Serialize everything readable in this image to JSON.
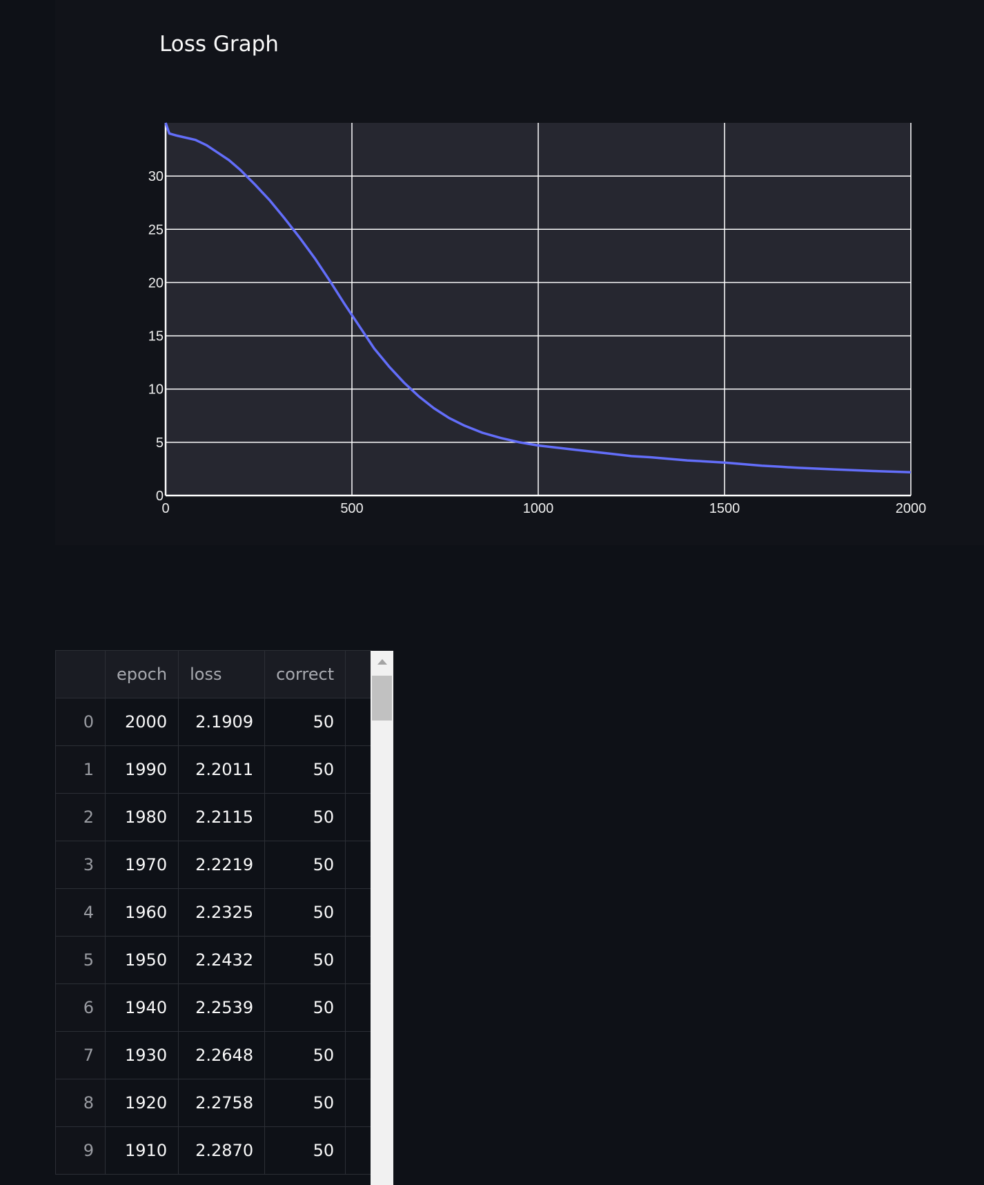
{
  "chart": {
    "title": "Loss Graph"
  },
  "chart_data": {
    "type": "line",
    "title": "Loss Graph",
    "xlabel": "",
    "ylabel": "",
    "xlim": [
      0,
      2000
    ],
    "ylim": [
      0,
      35
    ],
    "grid": true,
    "x_ticks": [
      "0",
      "500",
      "1000",
      "1500",
      "2000"
    ],
    "y_ticks": [
      "0",
      "5",
      "10",
      "15",
      "20",
      "25",
      "30"
    ],
    "line_color": "#636efa",
    "series": [
      {
        "x": [
          0,
          10,
          30,
          80,
          110,
          140,
          170,
          200,
          240,
          280,
          320,
          360,
          400,
          440,
          480,
          520,
          560,
          600,
          640,
          680,
          720,
          760,
          800,
          850,
          900,
          950,
          1000,
          1100,
          1200,
          1250,
          1300,
          1400,
          1500,
          1600,
          1650,
          1700,
          1800,
          1900,
          2000
        ],
        "y": [
          35.0,
          34.0,
          33.8,
          33.4,
          32.9,
          32.2,
          31.5,
          30.6,
          29.2,
          27.7,
          26.0,
          24.2,
          22.3,
          20.2,
          18.0,
          15.9,
          13.8,
          12.1,
          10.6,
          9.3,
          8.2,
          7.3,
          6.6,
          5.9,
          5.4,
          5.0,
          4.7,
          4.3,
          3.9,
          3.7,
          3.6,
          3.3,
          3.1,
          2.8,
          2.7,
          2.6,
          2.45,
          2.3,
          2.19
        ]
      }
    ]
  },
  "table": {
    "columns": [
      "",
      "epoch",
      "loss",
      "correct"
    ],
    "rows": [
      {
        "index": "0",
        "epoch": "2000",
        "loss": "2.1909",
        "correct": "50"
      },
      {
        "index": "1",
        "epoch": "1990",
        "loss": "2.2011",
        "correct": "50"
      },
      {
        "index": "2",
        "epoch": "1980",
        "loss": "2.2115",
        "correct": "50"
      },
      {
        "index": "3",
        "epoch": "1970",
        "loss": "2.2219",
        "correct": "50"
      },
      {
        "index": "4",
        "epoch": "1960",
        "loss": "2.2325",
        "correct": "50"
      },
      {
        "index": "5",
        "epoch": "1950",
        "loss": "2.2432",
        "correct": "50"
      },
      {
        "index": "6",
        "epoch": "1940",
        "loss": "2.2539",
        "correct": "50"
      },
      {
        "index": "7",
        "epoch": "1930",
        "loss": "2.2648",
        "correct": "50"
      },
      {
        "index": "8",
        "epoch": "1920",
        "loss": "2.2758",
        "correct": "50"
      },
      {
        "index": "9",
        "epoch": "1910",
        "loss": "2.2870",
        "correct": "50"
      }
    ]
  }
}
